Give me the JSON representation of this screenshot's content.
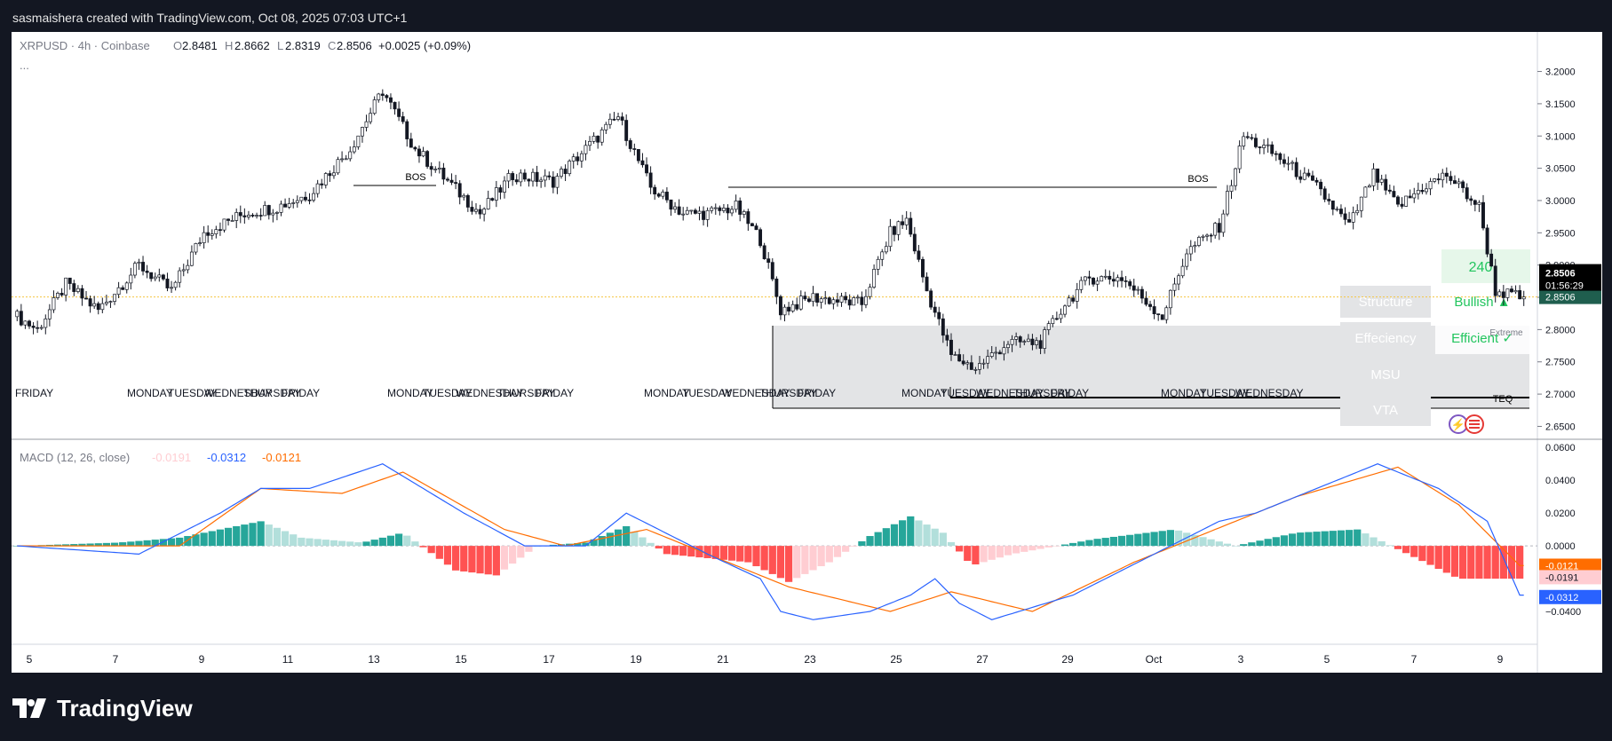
{
  "header": {
    "attribution": "sasmaishera created with TradingView.com, Oct 08, 2025 07:03 UTC+1"
  },
  "branding": {
    "logo_text": "TradingView",
    "logo_icon": "tradingview-logo-icon"
  },
  "symbol_info": {
    "symbol": "XRPUSD · 4h · Coinbase",
    "o_label": "O",
    "o": "2.8481",
    "h_label": "H",
    "h": "2.8662",
    "l_label": "L",
    "l": "2.8319",
    "c_label": "C",
    "c": "2.8506",
    "change": "+0.0025 (+0.09%)",
    "more": "..."
  },
  "price_axis": {
    "ticks": [
      "3.2000",
      "3.1500",
      "3.1000",
      "3.0500",
      "3.0000",
      "2.9500",
      "2.9000",
      "2.8500",
      "2.8000",
      "2.7500",
      "2.7000",
      "2.6500"
    ],
    "last_price": "2.8506",
    "countdown": "01:56:29",
    "last_price_repeat": "2.8506"
  },
  "macd": {
    "label": "MACD (12, 26, close)",
    "hist": "-0.0191",
    "macd": "-0.0312",
    "signal": "-0.0121",
    "ticks": [
      "0.0600",
      "0.0400",
      "0.0200",
      "0.0000",
      "−0.0400"
    ],
    "axis_badges": [
      "-0.0121",
      "-0.0191",
      "-0.0312"
    ]
  },
  "time_axis": {
    "labels": [
      "5",
      "7",
      "9",
      "11",
      "13",
      "15",
      "17",
      "19",
      "21",
      "23",
      "25",
      "27",
      "29",
      "Oct",
      "3",
      "5",
      "7",
      "9"
    ]
  },
  "day_labels": [
    "FRIDAY",
    "MONDAY",
    "TUESDAY",
    "WEDNESDAY",
    "THURSDAY",
    "FRIDAY",
    "MONDAY",
    "TUESDAY",
    "WEDNESDAY",
    "THURSDAY",
    "FRIDAY",
    "MONDAY",
    "TUESDAY",
    "WEDNESDAY",
    "THURSDAY",
    "FRIDAY",
    "MONDAY",
    "TUESDAY",
    "WEDNESDAY",
    "THURSDAY",
    "FRIDAY",
    "MONDAY",
    "TUESDAY",
    "WEDNESDAY"
  ],
  "annotations": {
    "bos_1": "BOS",
    "bos_2": "BOS",
    "teq": "TEQ",
    "value_240": "240"
  },
  "panel": {
    "rows": [
      {
        "label": "Structure",
        "value": "Bullish ▲"
      },
      {
        "label": "Effeciency",
        "value": "Efficient ✓"
      },
      {
        "label": "MSU",
        "value": ""
      },
      {
        "label": "VTA",
        "value": ""
      }
    ],
    "extreme": "Extreme"
  },
  "colors": {
    "up": "#ffffff",
    "down": "#131722",
    "macd": "#2962ff",
    "signal": "#ff6d00",
    "hist_pos": "#26a69a",
    "hist_pos_light": "#b2dfdb",
    "hist_neg": "#ff5252",
    "hist_neg_light": "#ffcdd2",
    "bullish": "#22c55e"
  },
  "chart_data": [
    {
      "type": "candlestick",
      "title": "XRPUSD · 4h · Coinbase",
      "x_labels": [
        "5",
        "7",
        "9",
        "11",
        "13",
        "15",
        "17",
        "19",
        "21",
        "23",
        "25",
        "27",
        "29",
        "Oct",
        "3",
        "5",
        "7",
        "9"
      ],
      "ylim": [
        2.63,
        3.22
      ],
      "anchors": [
        [
          0,
          2.82
        ],
        [
          5,
          2.8
        ],
        [
          12,
          2.87
        ],
        [
          20,
          2.83
        ],
        [
          30,
          2.9
        ],
        [
          38,
          2.86
        ],
        [
          46,
          2.95
        ],
        [
          56,
          2.98
        ],
        [
          64,
          2.99
        ],
        [
          72,
          3.01
        ],
        [
          82,
          3.08
        ],
        [
          90,
          3.17
        ],
        [
          98,
          3.08
        ],
        [
          106,
          3.03
        ],
        [
          114,
          2.98
        ],
        [
          122,
          3.04
        ],
        [
          132,
          3.03
        ],
        [
          140,
          3.08
        ],
        [
          148,
          3.13
        ],
        [
          156,
          3.02
        ],
        [
          164,
          2.98
        ],
        [
          170,
          2.98
        ],
        [
          177,
          2.99
        ],
        [
          183,
          2.94
        ],
        [
          188,
          2.83
        ],
        [
          196,
          2.85
        ],
        [
          208,
          2.84
        ],
        [
          215,
          2.95
        ],
        [
          219,
          2.97
        ],
        [
          224,
          2.86
        ],
        [
          230,
          2.76
        ],
        [
          236,
          2.74
        ],
        [
          244,
          2.78
        ],
        [
          252,
          2.78
        ],
        [
          258,
          2.84
        ],
        [
          264,
          2.88
        ],
        [
          272,
          2.88
        ],
        [
          282,
          2.82
        ],
        [
          288,
          2.92
        ],
        [
          296,
          2.96
        ],
        [
          302,
          3.1
        ],
        [
          310,
          3.07
        ],
        [
          320,
          3.02
        ],
        [
          328,
          2.96
        ],
        [
          334,
          3.04
        ],
        [
          340,
          2.99
        ],
        [
          346,
          3.02
        ],
        [
          352,
          3.04
        ],
        [
          360,
          2.99
        ],
        [
          364,
          2.86
        ],
        [
          370,
          2.85
        ]
      ],
      "last_close": 2.8506
    },
    {
      "type": "line",
      "title": "MACD (12, 26, close)",
      "ylim": [
        -0.06,
        0.065
      ],
      "macd_anchors": [
        [
          0,
          0.0
        ],
        [
          30,
          -0.005
        ],
        [
          50,
          0.02
        ],
        [
          60,
          0.035
        ],
        [
          72,
          0.035
        ],
        [
          90,
          0.05
        ],
        [
          110,
          0.02
        ],
        [
          125,
          0.0
        ],
        [
          140,
          0.0
        ],
        [
          150,
          0.02
        ],
        [
          158,
          0.01
        ],
        [
          170,
          -0.005
        ],
        [
          183,
          -0.02
        ],
        [
          188,
          -0.04
        ],
        [
          196,
          -0.045
        ],
        [
          210,
          -0.04
        ],
        [
          220,
          -0.03
        ],
        [
          226,
          -0.02
        ],
        [
          232,
          -0.035
        ],
        [
          240,
          -0.045
        ],
        [
          260,
          -0.03
        ],
        [
          280,
          -0.005
        ],
        [
          296,
          0.015
        ],
        [
          305,
          0.02
        ],
        [
          320,
          0.035
        ],
        [
          335,
          0.05
        ],
        [
          350,
          0.035
        ],
        [
          362,
          0.015
        ],
        [
          370,
          -0.03
        ]
      ],
      "signal_anchors": [
        [
          0,
          0.0
        ],
        [
          40,
          0.0
        ],
        [
          60,
          0.035
        ],
        [
          80,
          0.032
        ],
        [
          95,
          0.045
        ],
        [
          120,
          0.01
        ],
        [
          135,
          0.0
        ],
        [
          155,
          0.01
        ],
        [
          175,
          -0.01
        ],
        [
          190,
          -0.025
        ],
        [
          215,
          -0.04
        ],
        [
          230,
          -0.028
        ],
        [
          250,
          -0.04
        ],
        [
          275,
          -0.01
        ],
        [
          295,
          0.01
        ],
        [
          315,
          0.03
        ],
        [
          340,
          0.048
        ],
        [
          355,
          0.025
        ],
        [
          370,
          -0.012
        ]
      ],
      "hist_anchors": [
        [
          0,
          0.0
        ],
        [
          25,
          0.002
        ],
        [
          40,
          0.005
        ],
        [
          60,
          0.015
        ],
        [
          70,
          0.005
        ],
        [
          85,
          0.002
        ],
        [
          95,
          0.008
        ],
        [
          108,
          -0.015
        ],
        [
          118,
          -0.018
        ],
        [
          128,
          0.0
        ],
        [
          140,
          0.002
        ],
        [
          150,
          0.012
        ],
        [
          160,
          -0.005
        ],
        [
          180,
          -0.01
        ],
        [
          190,
          -0.022
        ],
        [
          200,
          -0.01
        ],
        [
          210,
          0.006
        ],
        [
          220,
          0.018
        ],
        [
          228,
          0.008
        ],
        [
          235,
          -0.012
        ],
        [
          245,
          -0.005
        ],
        [
          265,
          0.004
        ],
        [
          285,
          0.01
        ],
        [
          300,
          0.0
        ],
        [
          315,
          0.008
        ],
        [
          330,
          0.01
        ],
        [
          345,
          -0.008
        ],
        [
          355,
          -0.02
        ],
        [
          370,
          -0.02
        ]
      ]
    }
  ]
}
